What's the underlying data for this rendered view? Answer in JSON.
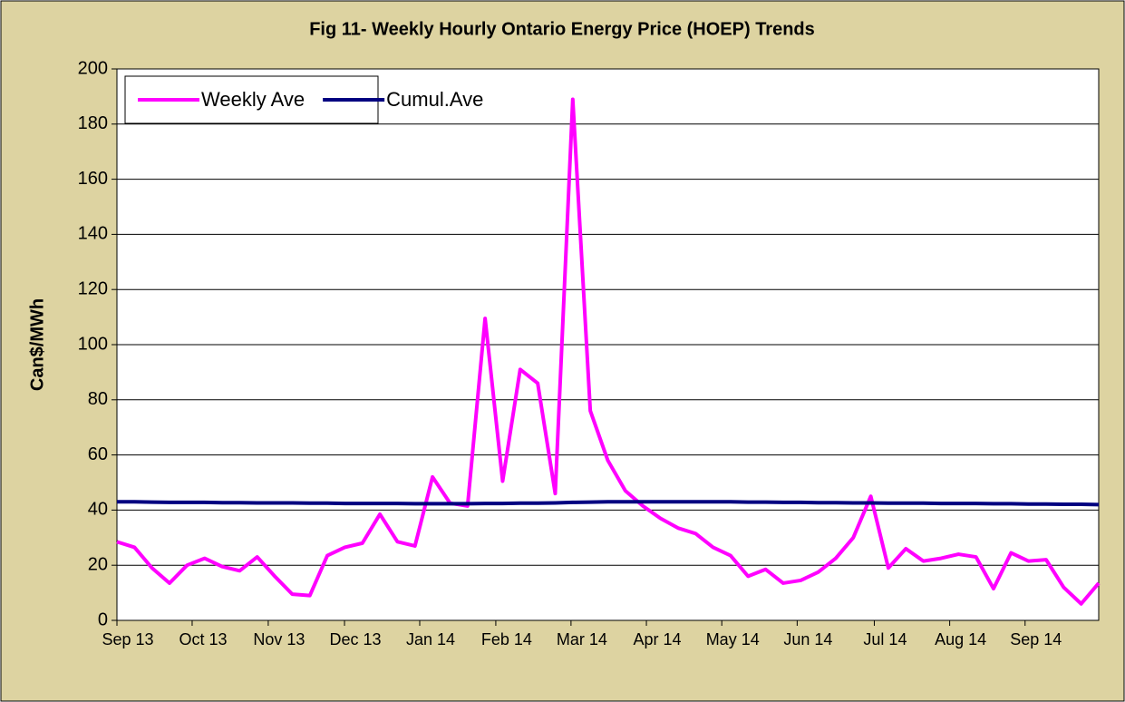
{
  "chart_data": {
    "type": "line",
    "title": "Fig 11- Weekly Hourly Ontario Energy Price (HOEP) Trends",
    "y_label": "Can$/MWh",
    "ylim": [
      0,
      200
    ],
    "yticks": [
      0,
      20,
      40,
      60,
      80,
      100,
      120,
      140,
      160,
      180,
      200
    ],
    "xlim": [
      0,
      56
    ],
    "xticks": [
      {
        "value": 0,
        "label": "Sep 13"
      },
      {
        "value": 4.29,
        "label": "Oct 13"
      },
      {
        "value": 8.63,
        "label": "Nov 13"
      },
      {
        "value": 12.98,
        "label": "Dec 13"
      },
      {
        "value": 17.27,
        "label": "Jan 14"
      },
      {
        "value": 21.61,
        "label": "Feb 14"
      },
      {
        "value": 25.9,
        "label": "Mar 14"
      },
      {
        "value": 30.2,
        "label": "Apr 14"
      },
      {
        "value": 34.5,
        "label": "May 14"
      },
      {
        "value": 38.8,
        "label": "Jun 14"
      },
      {
        "value": 43.2,
        "label": "Jul 14"
      },
      {
        "value": 47.5,
        "label": "Aug 14"
      },
      {
        "value": 51.8,
        "label": "Sep 14"
      }
    ],
    "grid": true,
    "legend": "top-left",
    "series": [
      {
        "name": "Weekly Ave",
        "color": "#ff00ff",
        "values": [
          28.5,
          26.5,
          19,
          13.5,
          20,
          22.5,
          19.5,
          18,
          23,
          16,
          9.5,
          9,
          23.5,
          26.5,
          28,
          38.5,
          28.5,
          27,
          52,
          42.5,
          41.5,
          109.5,
          50.5,
          91,
          86,
          46,
          189,
          76,
          58,
          47,
          41.5,
          37,
          33.5,
          31.5,
          26.5,
          23.5,
          16,
          18.5,
          13.5,
          14.5,
          17.5,
          22.5,
          30,
          45,
          19,
          26,
          21.5,
          22.5,
          24,
          23,
          11.5,
          24.5,
          21.5,
          22,
          12,
          6,
          13.5
        ]
      },
      {
        "name": "Cumul.Ave",
        "color": "#000080",
        "values": [
          43,
          43,
          42.9,
          42.8,
          42.8,
          42.8,
          42.7,
          42.7,
          42.6,
          42.6,
          42.6,
          42.5,
          42.5,
          42.4,
          42.4,
          42.4,
          42.4,
          42.3,
          42.3,
          42.3,
          42.3,
          42.4,
          42.4,
          42.5,
          42.5,
          42.6,
          42.8,
          42.9,
          43,
          43,
          43,
          43,
          43,
          43,
          43,
          43,
          42.9,
          42.9,
          42.8,
          42.8,
          42.7,
          42.7,
          42.6,
          42.6,
          42.5,
          42.5,
          42.5,
          42.4,
          42.4,
          42.4,
          42.3,
          42.3,
          42.2,
          42.2,
          42.1,
          42.1,
          42
        ]
      }
    ]
  }
}
